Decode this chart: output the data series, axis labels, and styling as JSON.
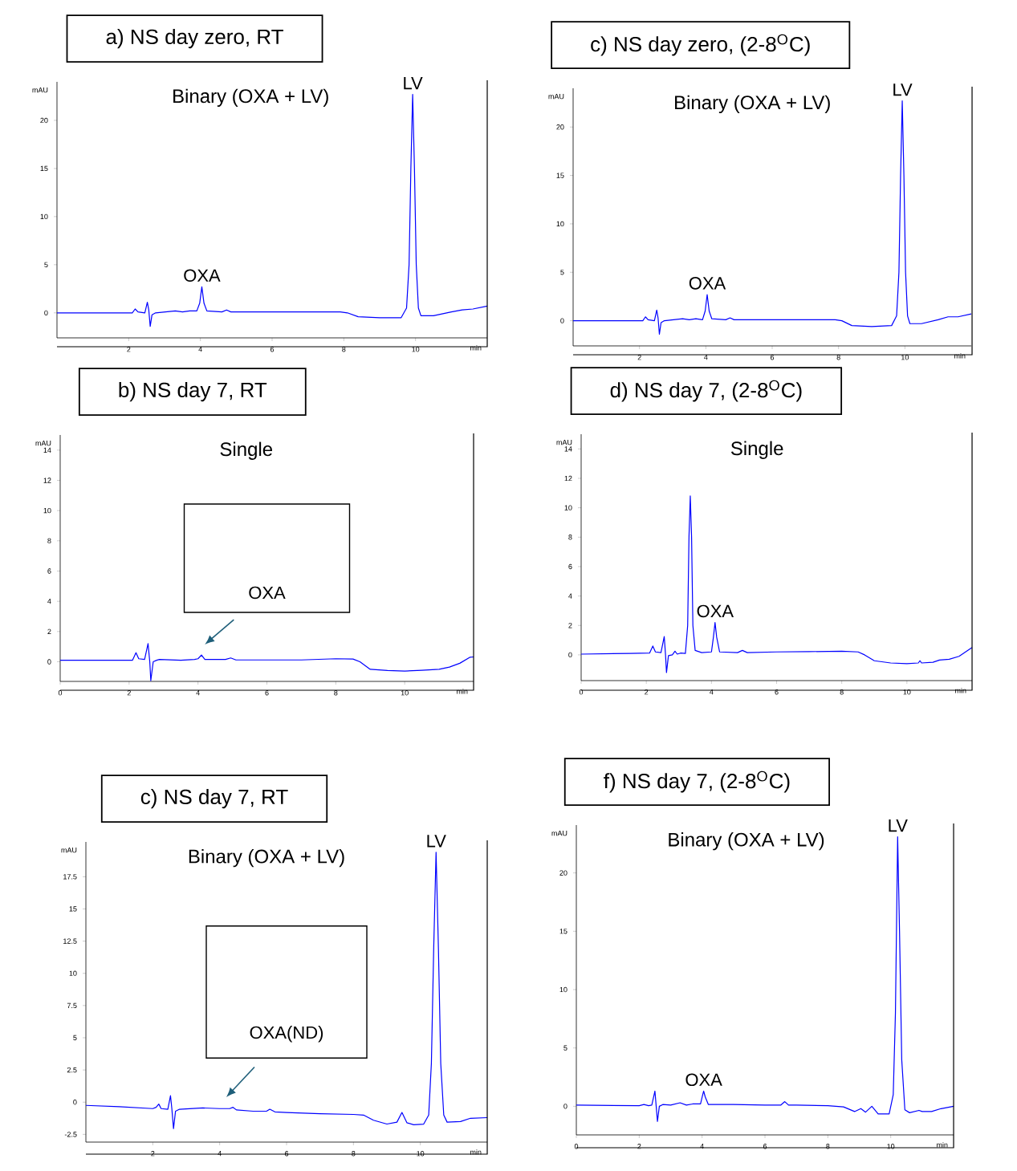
{
  "chart_data": [
    {
      "type": "line",
      "title": "a)  NS day zero, RT",
      "subtitle": "Binary (OXA + LV)",
      "xlabel": "min",
      "ylabel": "mAU",
      "xlim": [
        0,
        12
      ],
      "ylim": [
        -2.6,
        24
      ],
      "xticks": [
        2,
        4,
        6,
        8,
        10
      ],
      "yticks": [
        0,
        5,
        10,
        15,
        20
      ],
      "series": [
        {
          "color": "#0000ff",
          "x": [
            0,
            1.5,
            2.1,
            2.18,
            2.26,
            2.45,
            2.52,
            2.56,
            2.6,
            2.65,
            2.75,
            3.3,
            3.5,
            3.7,
            3.9,
            3.98,
            4.04,
            4.1,
            4.18,
            4.6,
            4.73,
            4.85,
            6,
            7,
            7.9,
            8.1,
            8.4,
            9.0,
            9.6,
            9.75,
            9.82,
            9.87,
            9.92,
            9.97,
            10.02,
            10.08,
            10.15,
            10.5,
            11,
            11.3,
            11.6,
            12
          ],
          "values": [
            0,
            0,
            0,
            0.4,
            0.1,
            0,
            1.1,
            0.3,
            -1.4,
            -0.2,
            0,
            0.2,
            0.1,
            0.2,
            0.2,
            1.0,
            2.7,
            1.0,
            0.2,
            0.1,
            0.3,
            0.1,
            0.1,
            0.1,
            0.1,
            0,
            -0.4,
            -0.5,
            -0.5,
            0.5,
            5,
            15,
            22.7,
            15,
            5,
            0.5,
            -0.3,
            -0.3,
            0.1,
            0.3,
            0.4,
            0.7
          ]
        }
      ],
      "annotations": [
        {
          "text": "OXA",
          "x": 4.04,
          "y": 2.7
        },
        {
          "text": "LV",
          "x": 9.92,
          "y": 22.7
        }
      ]
    },
    {
      "type": "line",
      "title": "c)  NS day zero, (2-8$^{O}$C)",
      "subtitle": "Binary (OXA + LV)",
      "xlabel": "min",
      "ylabel": "mAU",
      "xlim": [
        0,
        12
      ],
      "ylim": [
        -2.6,
        24
      ],
      "xticks": [
        2,
        4,
        6,
        8,
        10
      ],
      "yticks": [
        0,
        5,
        10,
        15,
        20
      ],
      "series": [
        {
          "color": "#0000ff",
          "x": [
            0,
            1.5,
            2.1,
            2.18,
            2.26,
            2.45,
            2.52,
            2.56,
            2.6,
            2.65,
            2.75,
            3.3,
            3.5,
            3.7,
            3.9,
            3.98,
            4.04,
            4.1,
            4.18,
            4.6,
            4.73,
            4.85,
            6,
            7,
            7.9,
            8.1,
            8.4,
            9.0,
            9.6,
            9.75,
            9.82,
            9.87,
            9.92,
            9.97,
            10.02,
            10.08,
            10.15,
            10.5,
            11,
            11.3,
            11.6,
            12
          ],
          "values": [
            0,
            0,
            0,
            0.4,
            0.1,
            0,
            1.1,
            0.3,
            -1.4,
            -0.2,
            0,
            0.2,
            0.1,
            0.2,
            0.1,
            1.0,
            2.7,
            1.0,
            0.2,
            0.1,
            0.3,
            0.1,
            0.1,
            0.1,
            0.1,
            0,
            -0.5,
            -0.6,
            -0.5,
            0.5,
            5,
            15,
            22.7,
            15,
            5,
            0.5,
            -0.3,
            -0.3,
            0.1,
            0.4,
            0.4,
            0.7
          ]
        }
      ],
      "annotations": [
        {
          "text": "OXA",
          "x": 4.04,
          "y": 2.7
        },
        {
          "text": "LV",
          "x": 9.92,
          "y": 22.7
        }
      ]
    },
    {
      "type": "line",
      "title": "b) NS day 7, RT",
      "subtitle": "Single",
      "xlabel": "min",
      "ylabel": "mAU",
      "xlim": [
        0,
        12
      ],
      "ylim": [
        -1.3,
        15
      ],
      "xticks": [
        0,
        2,
        4,
        6,
        8,
        10
      ],
      "yticks": [
        0,
        2,
        4,
        6,
        8,
        10,
        12,
        14
      ],
      "series": [
        {
          "color": "#0000ff",
          "x": [
            0,
            2.1,
            2.2,
            2.28,
            2.45,
            2.55,
            2.6,
            2.63,
            2.7,
            2.8,
            2.88,
            3.5,
            3.9,
            4.0,
            4.1,
            4.2,
            4.8,
            4.95,
            5.1,
            6,
            7,
            8,
            8.5,
            8.7,
            9.0,
            9.5,
            10,
            10.5,
            11,
            11.3,
            11.6,
            11.9,
            12
          ],
          "values": [
            0.1,
            0.1,
            0.6,
            0.2,
            0.15,
            1.2,
            0,
            -1.25,
            0,
            0.1,
            0.15,
            0.1,
            0.15,
            0.2,
            0.45,
            0.15,
            0.15,
            0.25,
            0.12,
            0.12,
            0.12,
            0.2,
            0.18,
            0,
            -0.5,
            -0.58,
            -0.62,
            -0.56,
            -0.5,
            -0.35,
            -0.1,
            0.3,
            0.32
          ]
        }
      ],
      "annotations": [
        "OXA"
      ]
    },
    {
      "type": "line",
      "title": "d)  NS day 7, (2-8$^{O}$C)",
      "subtitle": "Single",
      "xlabel": "min",
      "ylabel": "mAU",
      "xlim": [
        0,
        12
      ],
      "ylim": [
        -1.75,
        15
      ],
      "xticks": [
        0,
        2,
        4,
        6,
        8,
        10
      ],
      "yticks": [
        0,
        2,
        4,
        6,
        8,
        10,
        12,
        14
      ],
      "series": [
        {
          "color": "#0000ff",
          "x": [
            0,
            1.5,
            2.1,
            2.2,
            2.28,
            2.45,
            2.55,
            2.59,
            2.62,
            2.68,
            2.8,
            2.88,
            2.95,
            3.05,
            3.2,
            3.27,
            3.31,
            3.35,
            3.39,
            3.43,
            3.5,
            3.7,
            4.0,
            4.06,
            4.11,
            4.16,
            4.25,
            4.8,
            4.95,
            5.1,
            6,
            7,
            8,
            8.5,
            8.7,
            9.0,
            9.5,
            10,
            10.35,
            10.4,
            10.45,
            10.8,
            11.0,
            11.3,
            11.6,
            12
          ],
          "values": [
            0.05,
            0.1,
            0.12,
            0.6,
            0.2,
            0.15,
            1.25,
            0,
            -1.2,
            -0.05,
            0,
            0.25,
            0.05,
            0.12,
            0.1,
            2,
            8,
            10.8,
            8,
            2,
            0.3,
            0.15,
            0.2,
            1.2,
            2.2,
            1.2,
            0.2,
            0.15,
            0.3,
            0.15,
            0.2,
            0.22,
            0.25,
            0.2,
            0,
            -0.4,
            -0.55,
            -0.6,
            -0.55,
            -0.4,
            -0.55,
            -0.5,
            -0.35,
            -0.3,
            -0.1,
            0.5
          ]
        }
      ],
      "annotations": [
        {
          "text": "OXA",
          "x": 4.11,
          "y": 2.2
        }
      ]
    },
    {
      "type": "line",
      "title": "c) NS day 7, RT",
      "subtitle": "Binary (OXA + LV)",
      "xlabel": "min",
      "ylabel": "mAU",
      "xlim": [
        0,
        12
      ],
      "ylim": [
        -3.1,
        20.2
      ],
      "xticks": [
        2,
        4,
        6,
        8,
        10
      ],
      "yticks": [
        -2.5,
        0,
        2.5,
        5,
        7.5,
        10,
        12.5,
        15,
        17.5
      ],
      "series": [
        {
          "color": "#0000ff",
          "x": [
            0,
            1,
            2,
            2.1,
            2.18,
            2.25,
            2.45,
            2.53,
            2.57,
            2.62,
            2.68,
            2.8,
            3.5,
            4,
            4.3,
            4.4,
            4.5,
            5,
            5.4,
            5.5,
            5.65,
            6,
            7,
            8,
            8.3,
            8.6,
            9,
            9.3,
            9.45,
            9.6,
            9.8,
            10.1,
            10.25,
            10.33,
            10.4,
            10.47,
            10.54,
            10.61,
            10.7,
            10.8,
            11.2,
            11.5,
            12
          ],
          "values": [
            -0.25,
            -0.35,
            -0.5,
            -0.4,
            -0.15,
            -0.5,
            -0.55,
            0.5,
            -0.5,
            -2.05,
            -0.7,
            -0.55,
            -0.45,
            -0.5,
            -0.5,
            -0.4,
            -0.6,
            -0.7,
            -0.7,
            -0.55,
            -0.75,
            -0.8,
            -0.9,
            -0.95,
            -1.0,
            -1.4,
            -1.7,
            -1.55,
            -0.8,
            -1.6,
            -1.75,
            -1.7,
            -1.0,
            3,
            12,
            19.4,
            12,
            3,
            -1.0,
            -1.55,
            -1.5,
            -1.25,
            -1.2
          ]
        }
      ],
      "annotations": [
        {
          "text": "LV",
          "x": 10.47,
          "y": 19.4
        },
        "OXA(ND)"
      ]
    },
    {
      "type": "line",
      "title": "f) NS day 7, (2-8$^{O}$C)",
      "subtitle": "Binary (OXA + LV)",
      "xlabel": "min",
      "ylabel": "mAU",
      "xlim": [
        0,
        12
      ],
      "ylim": [
        -2.45,
        24.1
      ],
      "xticks": [
        0,
        2,
        4,
        6,
        8,
        10
      ],
      "yticks": [
        0,
        5,
        10,
        15,
        20
      ],
      "series": [
        {
          "color": "#0000ff",
          "x": [
            0,
            2,
            2.15,
            2.3,
            2.4,
            2.5,
            2.54,
            2.58,
            2.64,
            2.75,
            3.0,
            3.3,
            3.5,
            3.7,
            3.95,
            4.02,
            4.05,
            4.1,
            4.2,
            5,
            6,
            6.5,
            6.63,
            6.75,
            7,
            8,
            8.5,
            8.85,
            9.05,
            9.2,
            9.4,
            9.6,
            9.95,
            10.08,
            10.15,
            10.22,
            10.28,
            10.35,
            10.45,
            10.6,
            10.9,
            11.0,
            11.3,
            11.6,
            12
          ],
          "values": [
            0.1,
            0.05,
            0.15,
            0.05,
            0.1,
            1.3,
            0,
            -1.3,
            0,
            0.15,
            0.1,
            0.3,
            0.1,
            0.2,
            0.2,
            1.0,
            1.3,
            0.8,
            0.15,
            0.15,
            0.1,
            0.1,
            0.4,
            0.1,
            0.1,
            0.05,
            -0.05,
            -0.45,
            -0.2,
            -0.5,
            0,
            -0.65,
            -0.65,
            1,
            8,
            23.1,
            15,
            4,
            -0.3,
            -0.55,
            -0.35,
            -0.45,
            -0.45,
            -0.2,
            0
          ]
        }
      ],
      "annotations": [
        {
          "text": "OXA",
          "x": 4.05,
          "y": 1.3
        },
        {
          "text": "LV",
          "x": 10.22,
          "y": 23.1
        }
      ]
    }
  ]
}
